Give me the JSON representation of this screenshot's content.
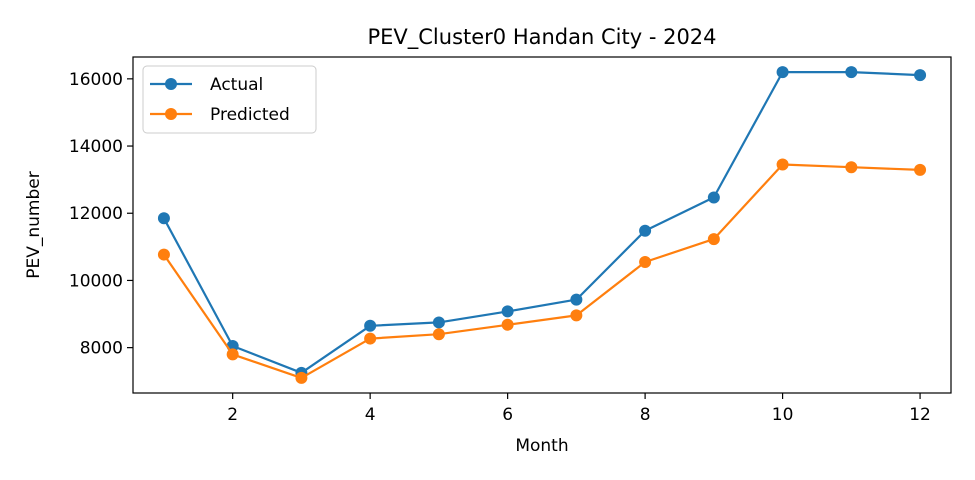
{
  "chart_data": {
    "type": "line",
    "title": "PEV_Cluster0 Handan City - 2024",
    "xlabel": "Month",
    "ylabel": "PEV_number",
    "x": [
      1,
      2,
      3,
      4,
      5,
      6,
      7,
      8,
      9,
      10,
      11,
      12
    ],
    "xticks": [
      "2",
      "4",
      "6",
      "8",
      "10",
      "12"
    ],
    "yticks": [
      "8000",
      "10000",
      "12000",
      "14000",
      "16000"
    ],
    "xlim": [
      0.55,
      12.45
    ],
    "ylim": [
      6650,
      16650
    ],
    "grid": false,
    "legend_position": "upper-left",
    "series": [
      {
        "name": "Actual",
        "color": "#1f77b4",
        "values": [
          11850,
          8050,
          7250,
          8650,
          8750,
          9080,
          9430,
          11480,
          12470,
          16200,
          16200,
          16110
        ]
      },
      {
        "name": "Predicted",
        "color": "#ff7f0e",
        "values": [
          10770,
          7800,
          7100,
          8270,
          8400,
          8680,
          8960,
          10550,
          11230,
          13450,
          13370,
          13290
        ]
      }
    ]
  }
}
